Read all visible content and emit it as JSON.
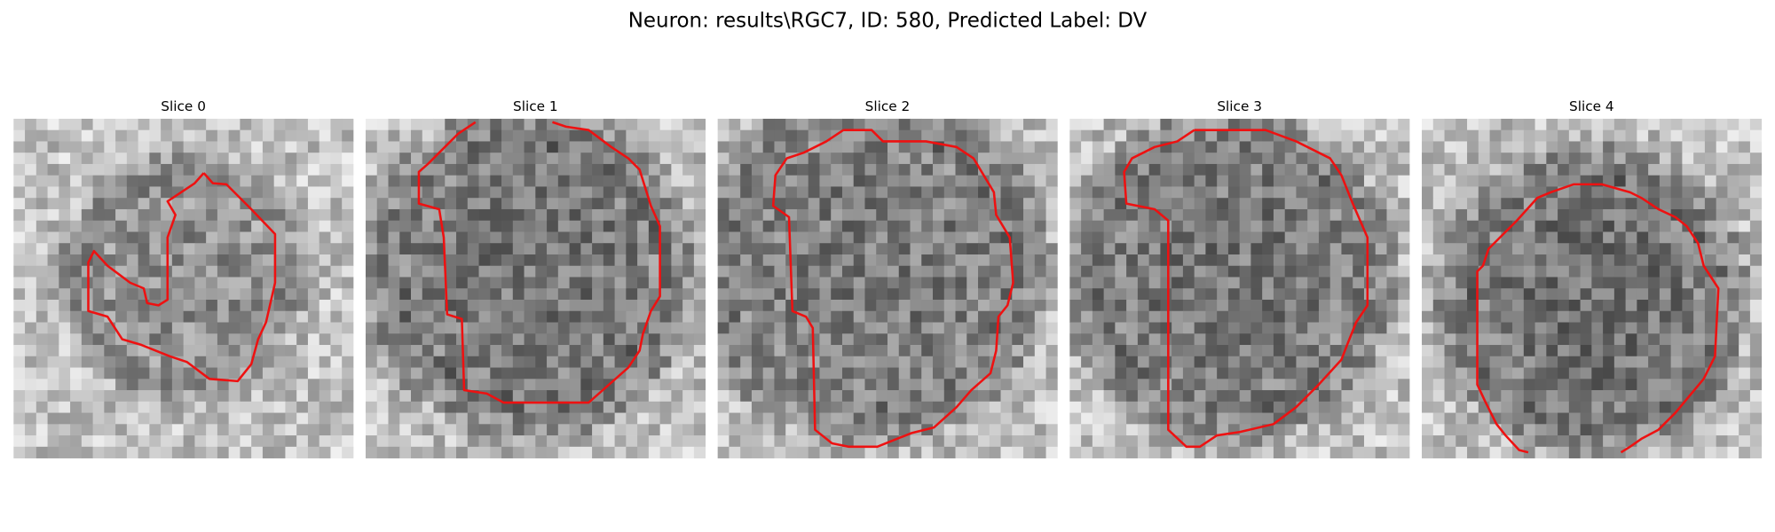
{
  "header": {
    "title": "Neuron: results\\RGC7, ID: 580, Predicted Label: DV"
  },
  "panels": [
    {
      "title": "Slice 0"
    },
    {
      "title": "Slice 1"
    },
    {
      "title": "Slice 2"
    },
    {
      "title": "Slice 3"
    },
    {
      "title": "Slice 4"
    }
  ]
}
